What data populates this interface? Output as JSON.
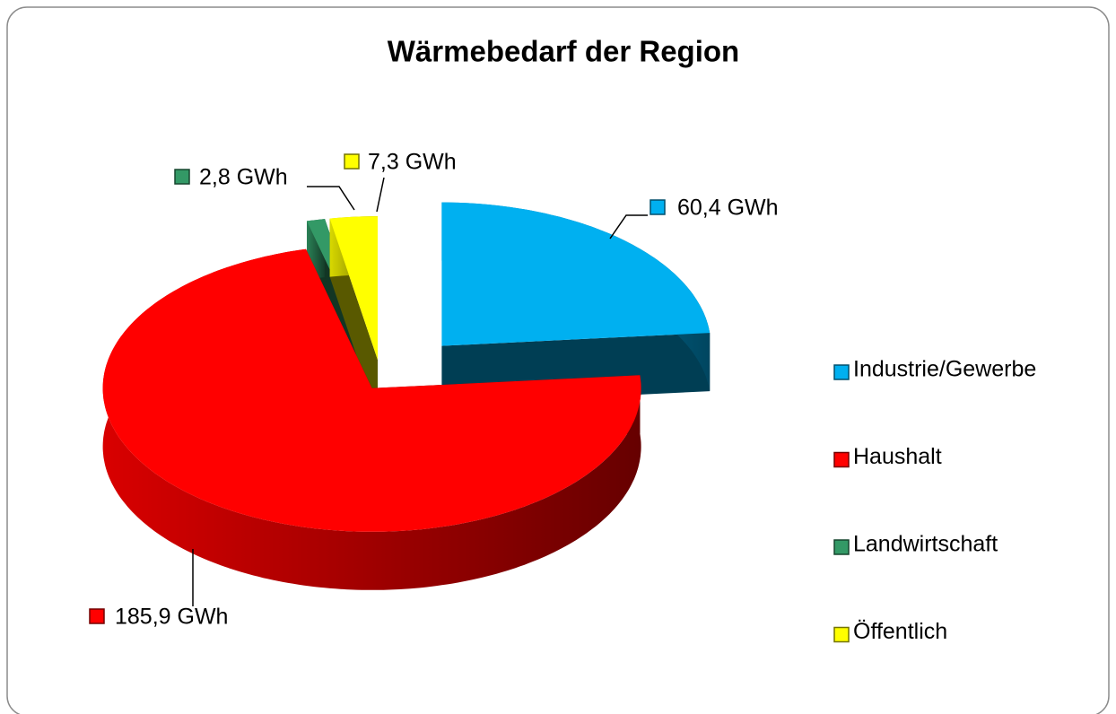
{
  "chart_data": {
    "type": "pie",
    "title": "Wärmebedarf der Region",
    "categories": [
      "Industrie/Gewerbe",
      "Haushalt",
      "Landwirtschaft",
      "Öffentlich"
    ],
    "values": [
      60.4,
      185.9,
      2.8,
      7.3
    ],
    "value_labels": [
      "60,4 GWh",
      "185,9 GWh",
      "2,8 GWh",
      "7,3 GWh"
    ],
    "colors": [
      "#00b0f0",
      "#ff0000",
      "#339966",
      "#ffff00"
    ],
    "legend": "right"
  }
}
